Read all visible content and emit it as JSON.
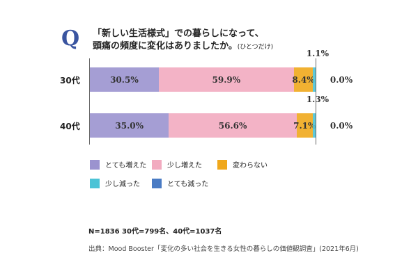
{
  "chart_data": {
    "type": "bar",
    "stacked": true,
    "orientation": "horizontal",
    "q_mark": "Q",
    "title_line1": "「新しい生活様式」での暮らしになって、",
    "title_line2": "頭痛の頻度に変化はありましたか。",
    "title_note": "(ひとつだけ)",
    "categories": [
      "30代",
      "40代"
    ],
    "series": [
      {
        "name": "とても増えた",
        "color": "#9b93cf",
        "values": [
          30.5,
          35.0
        ],
        "labels": [
          "30.5%",
          "35.0%"
        ]
      },
      {
        "name": "少し増えた",
        "color": "#f2abc0",
        "values": [
          59.9,
          56.6
        ],
        "labels": [
          "59.9%",
          "56.6%"
        ]
      },
      {
        "name": "変わらない",
        "color": "#f0a81c",
        "values": [
          8.4,
          7.1
        ],
        "labels": [
          "8.4%",
          "7.1%"
        ]
      },
      {
        "name": "少し減った",
        "color": "#4cc3d6",
        "values": [
          1.1,
          1.3
        ],
        "labels": [
          "1.1%",
          "1.3%"
        ]
      },
      {
        "name": "とても減った",
        "color": "#4a7bc4",
        "values": [
          0.0,
          0.0
        ],
        "labels": [
          "0.0%",
          "0.0%"
        ]
      }
    ],
    "xlim": [
      0,
      100
    ]
  },
  "footer": {
    "n": "N=1836 30代=799名、40代=1037名",
    "source": "出典：Mood Booster「変化の多い社会を生きる女性の暮らしの価値観調査」(2021年6月)"
  }
}
